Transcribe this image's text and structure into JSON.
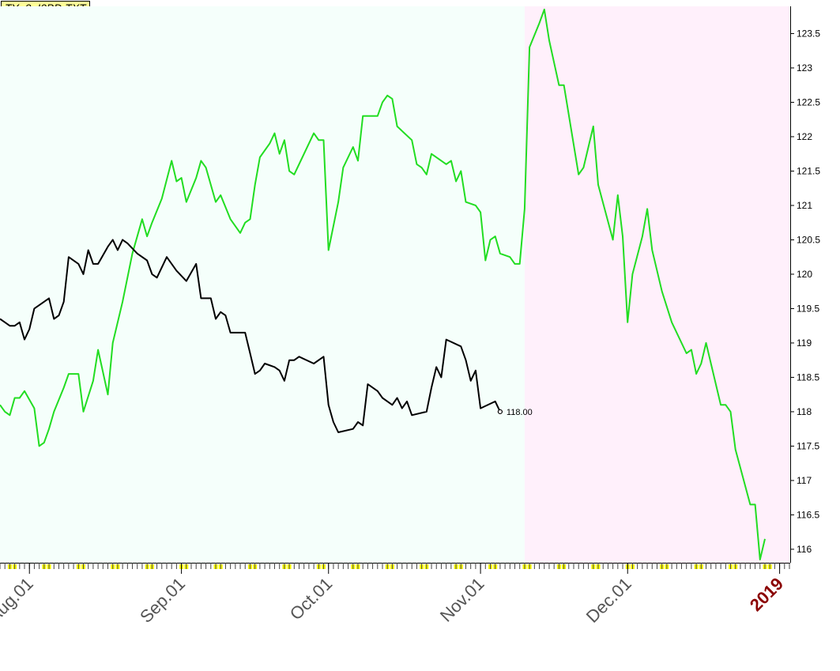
{
  "file_title": "TY_0_I0BD.TXT",
  "colors": {
    "background_left": "#f5fffb",
    "background_right": "#fff0fb",
    "series_green": "#22dd22",
    "series_black": "#000000",
    "axis_marker": "#ffff00",
    "year_label": "#8b0000"
  },
  "chart_data": {
    "type": "line",
    "title": "TY_0_I0BD.TXT",
    "x_type": "date",
    "x_range": [
      "2018-07-26",
      "2019-01-03"
    ],
    "shaded_regions": [
      {
        "from": "2018-07-26",
        "to": "2018-11-10",
        "color": "#f5fffb"
      },
      {
        "from": "2018-11-10",
        "to": "2019-01-03",
        "color": "#fff0fb"
      }
    ],
    "y_axis": {
      "side": "right",
      "min": 115.85,
      "max": 123.85,
      "ticks": [
        116,
        116.5,
        117,
        117.5,
        118,
        118.5,
        119,
        119.5,
        120,
        120.5,
        121,
        121.5,
        122,
        122.5,
        123,
        123.5
      ]
    },
    "x_ticks": [
      {
        "date": "2018-08-01",
        "label": "Aug.01"
      },
      {
        "date": "2018-09-01",
        "label": "Sep.01"
      },
      {
        "date": "2018-10-01",
        "label": "Oct.01"
      },
      {
        "date": "2018-11-01",
        "label": "Nov.01"
      },
      {
        "date": "2018-12-01",
        "label": "Dec.01"
      },
      {
        "date": "2019-01-01",
        "label": "2019",
        "emphasis": true
      }
    ],
    "grid": false,
    "legend": "none",
    "series": [
      {
        "color": "#22dd22",
        "points": [
          [
            "2018-07-26",
            118.1
          ],
          [
            "2018-07-27",
            118.0
          ],
          [
            "2018-07-28",
            117.95
          ],
          [
            "2018-07-29",
            118.2
          ],
          [
            "2018-07-30",
            118.2
          ],
          [
            "2018-07-31",
            118.3
          ],
          [
            "2018-08-02",
            118.05
          ],
          [
            "2018-08-03",
            117.5
          ],
          [
            "2018-08-04",
            117.55
          ],
          [
            "2018-08-05",
            117.75
          ],
          [
            "2018-08-06",
            118.0
          ],
          [
            "2018-08-08",
            118.35
          ],
          [
            "2018-08-09",
            118.55
          ],
          [
            "2018-08-11",
            118.55
          ],
          [
            "2018-08-12",
            118.0
          ],
          [
            "2018-08-14",
            118.45
          ],
          [
            "2018-08-15",
            118.9
          ],
          [
            "2018-08-17",
            118.25
          ],
          [
            "2018-08-18",
            119.0
          ],
          [
            "2018-08-20",
            119.6
          ],
          [
            "2018-08-22",
            120.3
          ],
          [
            "2018-08-24",
            120.8
          ],
          [
            "2018-08-25",
            120.55
          ],
          [
            "2018-08-26",
            120.75
          ],
          [
            "2018-08-28",
            121.1
          ],
          [
            "2018-08-30",
            121.65
          ],
          [
            "2018-08-31",
            121.35
          ],
          [
            "2018-09-01",
            121.4
          ],
          [
            "2018-09-02",
            121.05
          ],
          [
            "2018-09-04",
            121.4
          ],
          [
            "2018-09-05",
            121.65
          ],
          [
            "2018-09-06",
            121.55
          ],
          [
            "2018-09-08",
            121.05
          ],
          [
            "2018-09-09",
            121.15
          ],
          [
            "2018-09-11",
            120.8
          ],
          [
            "2018-09-13",
            120.6
          ],
          [
            "2018-09-14",
            120.75
          ],
          [
            "2018-09-15",
            120.8
          ],
          [
            "2018-09-16",
            121.3
          ],
          [
            "2018-09-17",
            121.7
          ],
          [
            "2018-09-19",
            121.9
          ],
          [
            "2018-09-20",
            122.05
          ],
          [
            "2018-09-21",
            121.75
          ],
          [
            "2018-09-22",
            121.95
          ],
          [
            "2018-09-23",
            121.5
          ],
          [
            "2018-09-24",
            121.45
          ],
          [
            "2018-09-26",
            121.75
          ],
          [
            "2018-09-28",
            122.05
          ],
          [
            "2018-09-29",
            121.95
          ],
          [
            "2018-09-30",
            121.95
          ],
          [
            "2018-10-01",
            120.35
          ],
          [
            "2018-10-03",
            121.05
          ],
          [
            "2018-10-04",
            121.55
          ],
          [
            "2018-10-06",
            121.85
          ],
          [
            "2018-10-07",
            121.65
          ],
          [
            "2018-10-08",
            122.3
          ],
          [
            "2018-10-11",
            122.3
          ],
          [
            "2018-10-12",
            122.5
          ],
          [
            "2018-10-13",
            122.6
          ],
          [
            "2018-10-14",
            122.55
          ],
          [
            "2018-10-15",
            122.15
          ],
          [
            "2018-10-18",
            121.95
          ],
          [
            "2018-10-19",
            121.6
          ],
          [
            "2018-10-20",
            121.55
          ],
          [
            "2018-10-21",
            121.45
          ],
          [
            "2018-10-22",
            121.75
          ],
          [
            "2018-10-25",
            121.6
          ],
          [
            "2018-10-26",
            121.65
          ],
          [
            "2018-10-27",
            121.35
          ],
          [
            "2018-10-28",
            121.5
          ],
          [
            "2018-10-29",
            121.05
          ],
          [
            "2018-10-31",
            121.0
          ],
          [
            "2018-11-01",
            120.9
          ],
          [
            "2018-11-02",
            120.2
          ],
          [
            "2018-11-03",
            120.5
          ],
          [
            "2018-11-04",
            120.55
          ],
          [
            "2018-11-05",
            120.3
          ],
          [
            "2018-11-07",
            120.25
          ],
          [
            "2018-11-08",
            120.15
          ],
          [
            "2018-11-09",
            120.15
          ],
          [
            "2018-11-10",
            120.95
          ],
          [
            "2018-11-11",
            123.3
          ],
          [
            "2018-11-13",
            123.65
          ],
          [
            "2018-11-14",
            123.85
          ],
          [
            "2018-11-15",
            123.4
          ],
          [
            "2018-11-17",
            122.75
          ],
          [
            "2018-11-18",
            122.75
          ],
          [
            "2018-11-21",
            121.45
          ],
          [
            "2018-11-22",
            121.55
          ],
          [
            "2018-11-23",
            121.85
          ],
          [
            "2018-11-24",
            122.15
          ],
          [
            "2018-11-25",
            121.3
          ],
          [
            "2018-11-28",
            120.5
          ],
          [
            "2018-11-29",
            121.15
          ],
          [
            "2018-11-30",
            120.55
          ],
          [
            "2018-12-01",
            119.3
          ],
          [
            "2018-12-02",
            120.0
          ],
          [
            "2018-12-04",
            120.55
          ],
          [
            "2018-12-05",
            120.95
          ],
          [
            "2018-12-06",
            120.35
          ],
          [
            "2018-12-08",
            119.75
          ],
          [
            "2018-12-10",
            119.3
          ],
          [
            "2018-12-13",
            118.85
          ],
          [
            "2018-12-14",
            118.9
          ],
          [
            "2018-12-15",
            118.55
          ],
          [
            "2018-12-16",
            118.7
          ],
          [
            "2018-12-17",
            119.0
          ],
          [
            "2018-12-20",
            118.1
          ],
          [
            "2018-12-21",
            118.1
          ],
          [
            "2018-12-22",
            118.0
          ],
          [
            "2018-12-23",
            117.45
          ],
          [
            "2018-12-26",
            116.65
          ],
          [
            "2018-12-27",
            116.65
          ],
          [
            "2018-12-28",
            115.85
          ],
          [
            "2018-12-29",
            116.15
          ]
        ]
      },
      {
        "color": "#000000",
        "last_value_label": "118.00",
        "points": [
          [
            "2018-07-26",
            119.35
          ],
          [
            "2018-07-27",
            119.3
          ],
          [
            "2018-07-28",
            119.25
          ],
          [
            "2018-07-29",
            119.25
          ],
          [
            "2018-07-30",
            119.3
          ],
          [
            "2018-07-31",
            119.05
          ],
          [
            "2018-08-01",
            119.2
          ],
          [
            "2018-08-02",
            119.5
          ],
          [
            "2018-08-04",
            119.6
          ],
          [
            "2018-08-05",
            119.65
          ],
          [
            "2018-08-06",
            119.35
          ],
          [
            "2018-08-07",
            119.4
          ],
          [
            "2018-08-08",
            119.6
          ],
          [
            "2018-08-09",
            120.25
          ],
          [
            "2018-08-11",
            120.15
          ],
          [
            "2018-08-12",
            120.0
          ],
          [
            "2018-08-13",
            120.35
          ],
          [
            "2018-08-14",
            120.15
          ],
          [
            "2018-08-15",
            120.15
          ],
          [
            "2018-08-17",
            120.4
          ],
          [
            "2018-08-18",
            120.5
          ],
          [
            "2018-08-19",
            120.35
          ],
          [
            "2018-08-20",
            120.5
          ],
          [
            "2018-08-21",
            120.45
          ],
          [
            "2018-08-23",
            120.3
          ],
          [
            "2018-08-25",
            120.2
          ],
          [
            "2018-08-26",
            120.0
          ],
          [
            "2018-08-27",
            119.95
          ],
          [
            "2018-08-29",
            120.25
          ],
          [
            "2018-08-31",
            120.05
          ],
          [
            "2018-09-02",
            119.9
          ],
          [
            "2018-09-04",
            120.15
          ],
          [
            "2018-09-05",
            119.65
          ],
          [
            "2018-09-07",
            119.65
          ],
          [
            "2018-09-08",
            119.35
          ],
          [
            "2018-09-09",
            119.45
          ],
          [
            "2018-09-10",
            119.4
          ],
          [
            "2018-09-11",
            119.15
          ],
          [
            "2018-09-14",
            119.15
          ],
          [
            "2018-09-15",
            118.85
          ],
          [
            "2018-09-16",
            118.55
          ],
          [
            "2018-09-17",
            118.6
          ],
          [
            "2018-09-18",
            118.7
          ],
          [
            "2018-09-20",
            118.65
          ],
          [
            "2018-09-21",
            118.6
          ],
          [
            "2018-09-22",
            118.45
          ],
          [
            "2018-09-23",
            118.75
          ],
          [
            "2018-09-24",
            118.75
          ],
          [
            "2018-09-25",
            118.8
          ],
          [
            "2018-09-28",
            118.7
          ],
          [
            "2018-09-30",
            118.8
          ],
          [
            "2018-10-01",
            118.1
          ],
          [
            "2018-10-02",
            117.85
          ],
          [
            "2018-10-03",
            117.7
          ],
          [
            "2018-10-06",
            117.75
          ],
          [
            "2018-10-07",
            117.85
          ],
          [
            "2018-10-08",
            117.8
          ],
          [
            "2018-10-09",
            118.4
          ],
          [
            "2018-10-11",
            118.3
          ],
          [
            "2018-10-12",
            118.2
          ],
          [
            "2018-10-14",
            118.1
          ],
          [
            "2018-10-15",
            118.2
          ],
          [
            "2018-10-16",
            118.05
          ],
          [
            "2018-10-17",
            118.15
          ],
          [
            "2018-10-18",
            117.95
          ],
          [
            "2018-10-21",
            118.0
          ],
          [
            "2018-10-22",
            118.35
          ],
          [
            "2018-10-23",
            118.65
          ],
          [
            "2018-10-24",
            118.5
          ],
          [
            "2018-10-25",
            119.05
          ],
          [
            "2018-10-28",
            118.95
          ],
          [
            "2018-10-29",
            118.75
          ],
          [
            "2018-10-30",
            118.45
          ],
          [
            "2018-10-31",
            118.6
          ],
          [
            "2018-11-01",
            118.05
          ],
          [
            "2018-11-04",
            118.15
          ],
          [
            "2018-11-05",
            118.0
          ]
        ]
      }
    ]
  }
}
